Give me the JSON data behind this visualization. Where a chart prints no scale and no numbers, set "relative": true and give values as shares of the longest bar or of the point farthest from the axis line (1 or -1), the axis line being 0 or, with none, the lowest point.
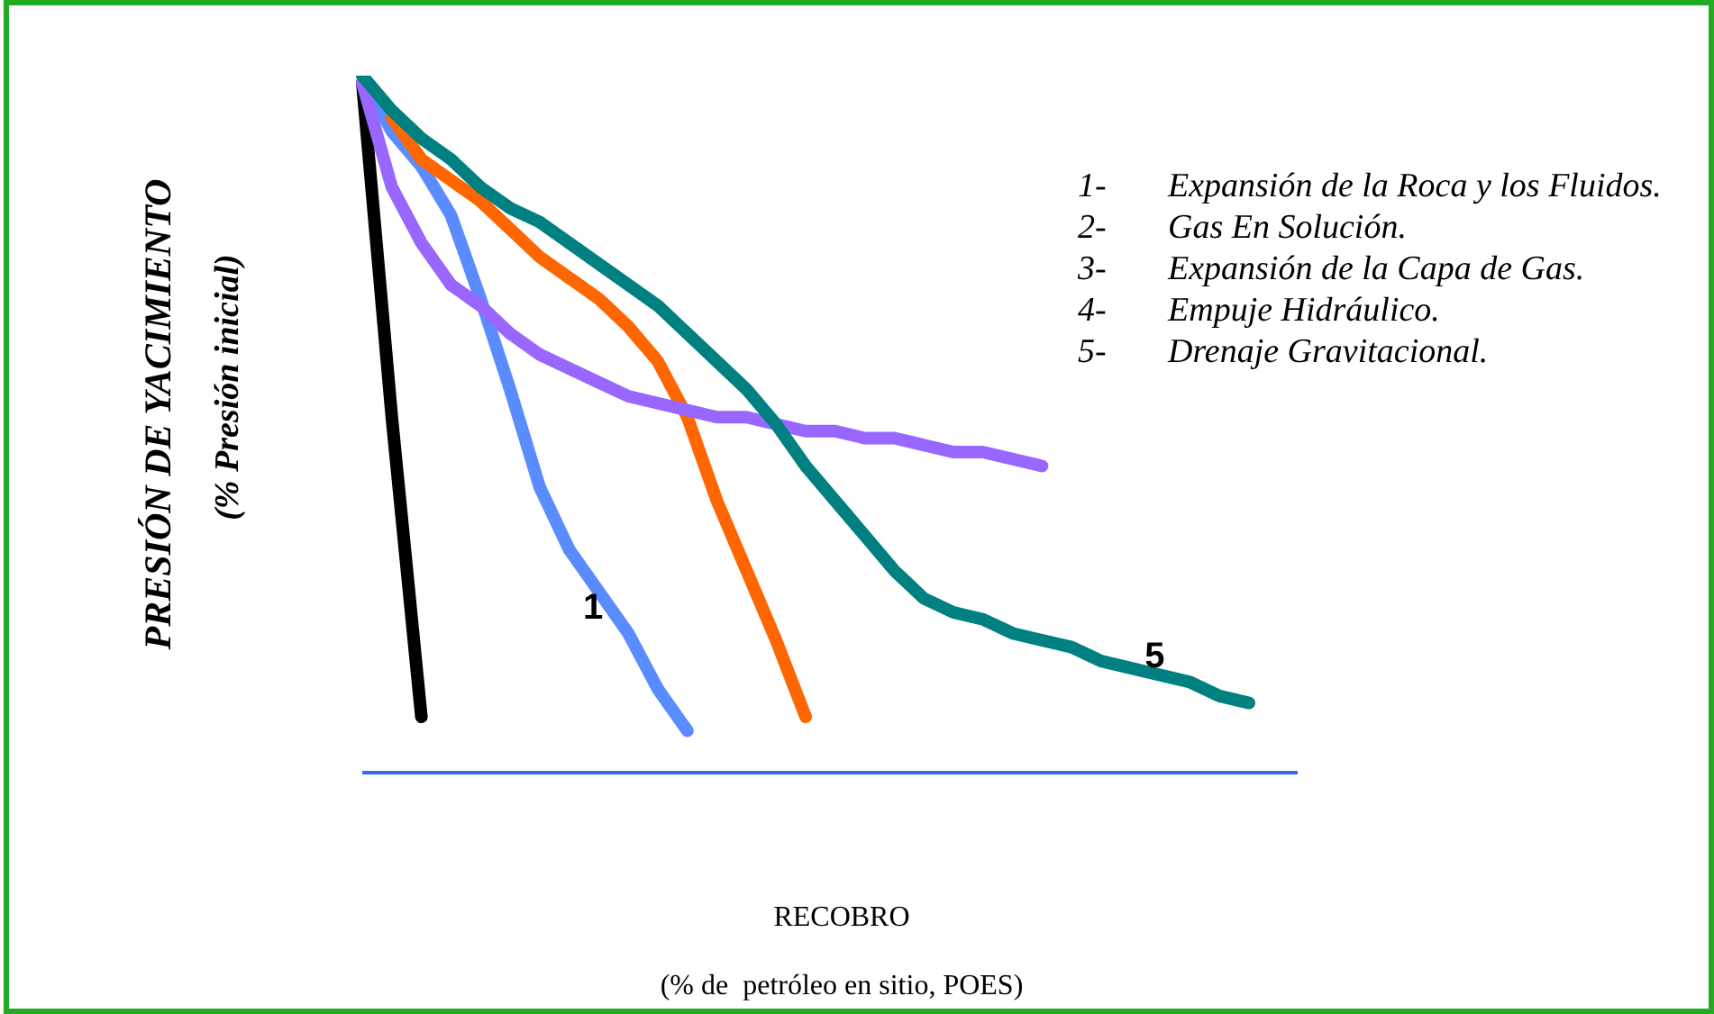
{
  "chart_data": {
    "type": "line",
    "relative": true,
    "xlabel": "RECOBRO\n(% de  petróleo en sitio, POES)",
    "ylabel": "PRESIÓN DE YACIMIENTO\n(% Presión inicial)",
    "categories": [
      null,
      null,
      null,
      null,
      null,
      null,
      null,
      null,
      null,
      null,
      null,
      null,
      null,
      null,
      null,
      null,
      null,
      null,
      null,
      null,
      null,
      null,
      null,
      null,
      null,
      null,
      null,
      null,
      null,
      null,
      null
    ],
    "tick_labels": false,
    "grid": false,
    "legend": false,
    "marker": "none",
    "line_style": "solid",
    "series": [
      {
        "color": "#000000",
        "values": [
          0.99,
          0.51,
          0.08,
          null,
          null,
          null,
          null,
          null,
          null,
          null,
          null,
          null,
          null,
          null,
          null,
          null,
          null,
          null,
          null,
          null,
          null,
          null,
          null,
          null,
          null,
          null,
          null,
          null,
          null,
          null,
          null
        ]
      },
      {
        "name": "1",
        "color": "#5b8cff",
        "values": [
          1.0,
          0.92,
          0.87,
          0.8,
          0.68,
          0.55,
          0.41,
          0.32,
          0.26,
          0.2,
          0.12,
          0.06,
          null,
          null,
          null,
          null,
          null,
          null,
          null,
          null,
          null,
          null,
          null,
          null,
          null,
          null,
          null,
          null,
          null,
          null,
          null
        ]
      },
      {
        "color": "#ff6600",
        "values": [
          null,
          0.94,
          0.88,
          0.85,
          0.82,
          0.78,
          0.74,
          0.71,
          0.68,
          0.64,
          0.59,
          0.51,
          0.39,
          0.29,
          0.19,
          0.08,
          null,
          null,
          null,
          null,
          null,
          null,
          null,
          null,
          null,
          null,
          null,
          null,
          null,
          null,
          null
        ]
      },
      {
        "color": "#9966ff",
        "values": [
          0.99,
          0.84,
          0.76,
          0.7,
          0.67,
          0.63,
          0.6,
          0.58,
          0.56,
          0.54,
          0.53,
          0.52,
          0.51,
          0.51,
          0.5,
          0.49,
          0.49,
          0.48,
          0.48,
          0.47,
          0.46,
          0.46,
          0.45,
          0.44,
          null,
          null,
          null,
          null,
          null,
          null,
          null
        ]
      },
      {
        "name": "5",
        "color": "#008080",
        "values": [
          1.0,
          0.95,
          0.91,
          0.88,
          0.84,
          0.81,
          0.79,
          0.76,
          0.73,
          0.7,
          0.67,
          0.63,
          0.59,
          0.55,
          0.5,
          0.44,
          0.39,
          0.34,
          0.29,
          0.25,
          0.23,
          0.22,
          0.2,
          0.19,
          0.18,
          0.16,
          0.15,
          0.14,
          0.13,
          0.11,
          0.1
        ]
      }
    ],
    "annotations": [
      "1- Expansión de la Roca y los Fluidos.",
      "2- Gas En Solución.",
      "3- Expansión de la Capa de Gas.",
      "4- Empuje Hidráulico.",
      "5- Drenaje Gravitacional."
    ]
  }
}
